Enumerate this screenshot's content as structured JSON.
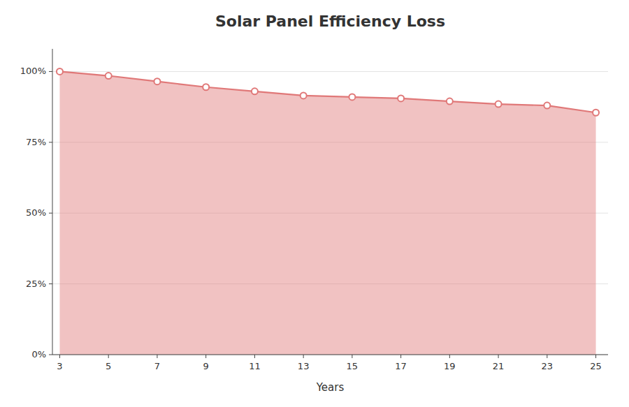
{
  "chart_data": {
    "type": "area",
    "title": "Solar Panel Efficiency Loss",
    "xlabel": "Years",
    "x": [
      3,
      5,
      7,
      9,
      11,
      13,
      15,
      17,
      19,
      21,
      23,
      25
    ],
    "values": [
      100,
      98.5,
      96.5,
      94.5,
      93,
      91.5,
      91,
      90.5,
      89.5,
      88.5,
      88,
      85.5
    ],
    "color": "#e07878",
    "marker": "circle",
    "xlim": [
      2.7,
      25.5
    ],
    "xticks": [
      3,
      5,
      7,
      9,
      11,
      13,
      15,
      17,
      19,
      21,
      23,
      25
    ],
    "ylim": [
      0,
      108
    ],
    "yticks": [
      {
        "value": 0,
        "label": "0%"
      },
      {
        "value": 25,
        "label": "25%"
      },
      {
        "value": 50,
        "label": "50%"
      },
      {
        "value": 75,
        "label": "75%"
      },
      {
        "value": 100,
        "label": "100%"
      }
    ],
    "grid": true
  }
}
